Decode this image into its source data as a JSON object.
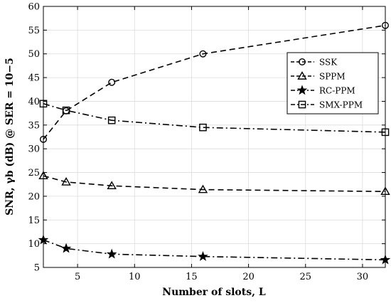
{
  "chart_data": {
    "type": "line",
    "xlabel": "Number of slots, L",
    "ylabel": "SNR, γb (dB) @ SER = 10−5",
    "xlim": [
      2,
      32
    ],
    "ylim": [
      5,
      60
    ],
    "x_ticks": [
      5,
      10,
      15,
      20,
      25,
      30
    ],
    "y_ticks": [
      5,
      10,
      15,
      20,
      25,
      30,
      35,
      40,
      45,
      50,
      55,
      60
    ],
    "grid": true,
    "legend_position": "upper-right",
    "series": [
      {
        "name": "SSK",
        "marker": "circle",
        "line_style": "dashed",
        "color": "#000000",
        "x": [
          2,
          4,
          8,
          16,
          32
        ],
        "y": [
          32,
          38,
          44,
          50,
          56
        ]
      },
      {
        "name": "SPPM",
        "marker": "triangle",
        "line_style": "dashed",
        "color": "#000000",
        "x": [
          2,
          4,
          8,
          16,
          32
        ],
        "y": [
          24.3,
          23,
          22.2,
          21.4,
          21
        ]
      },
      {
        "name": "RC-PPM",
        "marker": "star",
        "line_style": "dashdot",
        "color": "#000000",
        "x": [
          2,
          4,
          8,
          16,
          32
        ],
        "y": [
          10.8,
          9,
          7.8,
          7.3,
          6.6
        ]
      },
      {
        "name": "SMX-PPM",
        "marker": "square",
        "line_style": "dashdot",
        "color": "#000000",
        "x": [
          2,
          4,
          8,
          16,
          32
        ],
        "y": [
          39.5,
          38.1,
          36,
          34.5,
          33.5
        ]
      }
    ]
  }
}
